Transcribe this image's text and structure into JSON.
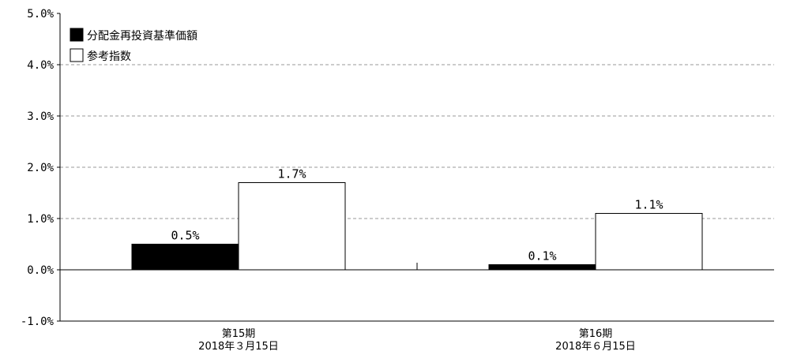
{
  "chart_data": {
    "type": "bar",
    "categories": [
      {
        "line1": "第15期",
        "line2": "2018年３月15日"
      },
      {
        "line1": "第16期",
        "line2": "2018年６月15日"
      }
    ],
    "series": [
      {
        "name": "分配金再投資基準価額",
        "color": "#000000",
        "values": [
          0.5,
          0.1
        ],
        "labels": [
          "0.5%",
          "0.1%"
        ]
      },
      {
        "name": "参考指数",
        "color": "#ffffff",
        "values": [
          1.7,
          1.1
        ],
        "labels": [
          "1.7%",
          "1.1%"
        ]
      }
    ],
    "ylim": [
      -1.0,
      5.0
    ],
    "yticks": [
      {
        "value": 5.0,
        "label": "5.0%"
      },
      {
        "value": 4.0,
        "label": "4.0%"
      },
      {
        "value": 3.0,
        "label": "3.0%"
      },
      {
        "value": 2.0,
        "label": "2.0%"
      },
      {
        "value": 1.0,
        "label": "1.0%"
      },
      {
        "value": 0.0,
        "label": "0.0%"
      },
      {
        "value": -1.0,
        "label": "-1.0%"
      }
    ],
    "grid": true,
    "legend_position": "top-left"
  }
}
